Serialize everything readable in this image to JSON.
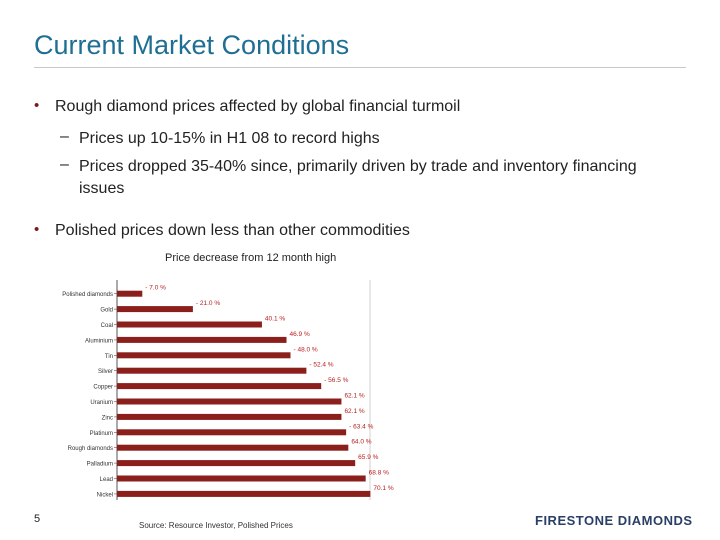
{
  "slide": {
    "title": "Current Market Conditions",
    "page_number": "5",
    "source": "Source: Resource Investor, Polished Prices",
    "logo_text": "FIRESTONE DIAMONDS"
  },
  "bullets": [
    {
      "marker": "•",
      "text": "Rough diamond prices affected by global financial turmoil"
    },
    {
      "marker": "•",
      "text": "Polished prices down less than other commodities"
    }
  ],
  "sub_bullets": [
    {
      "dash": "–",
      "text": "Prices up 10-15% in H1 08 to record highs"
    },
    {
      "dash": "–",
      "text": "Prices dropped 35-40% since, primarily driven by trade and inventory financing issues"
    }
  ],
  "chart_data": {
    "type": "bar",
    "orientation": "horizontal",
    "title": "Price decrease from 12 month high",
    "categories": [
      "Polished diamonds",
      "Gold",
      "Coal",
      "Aluminium",
      "Tin",
      "Silver",
      "Copper",
      "Uranium",
      "Zinc",
      "Platinum",
      "Rough diamonds",
      "Palladium",
      "Lead",
      "Nickel"
    ],
    "values": [
      7.0,
      21.0,
      40.1,
      46.9,
      48.0,
      52.4,
      56.5,
      62.1,
      62.1,
      63.4,
      64.0,
      65.9,
      68.8,
      70.1
    ],
    "labels": [
      "- 7.0 %",
      "- 21.0 %",
      "40.1 %",
      "46.9 %",
      "- 48.0 %",
      "- 52.4 %",
      "- 56.5 %",
      "62.1 %",
      "62.1 %",
      "- 63.4 %",
      "64.0 %",
      "65.9 %",
      "68.8 %",
      "70.1 %"
    ],
    "xlim": [
      0,
      70
    ],
    "bar_color": "#8a1f1c",
    "label_color": "#b71c1c",
    "grid": true
  }
}
